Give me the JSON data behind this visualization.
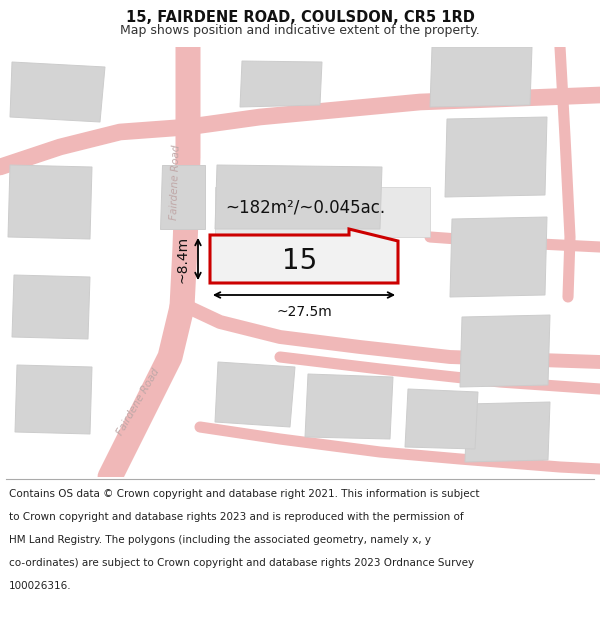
{
  "title": "15, FAIRDENE ROAD, COULSDON, CR5 1RD",
  "subtitle": "Map shows position and indicative extent of the property.",
  "footer_lines": [
    "Contains OS data © Crown copyright and database right 2021. This information is subject",
    "to Crown copyright and database rights 2023 and is reproduced with the permission of",
    "HM Land Registry. The polygons (including the associated geometry, namely x, y",
    "co-ordinates) are subject to Crown copyright and database rights 2023 Ordnance Survey",
    "100026316."
  ],
  "area_label": "~182m²/~0.045ac.",
  "width_label": "~27.5m",
  "height_label": "~8.4m",
  "plot_number": "15",
  "bg_color": "#ffffff",
  "road_color": "#f0b8b8",
  "building_fill": "#d4d4d4",
  "building_edge": "#cccccc",
  "highlight_fill": "#f2f2f2",
  "highlight_edge": "#cc0000",
  "road_label_color": "#c0a8a8",
  "title_fontsize": 10.5,
  "subtitle_fontsize": 9,
  "footer_fontsize": 7.5,
  "annotation_fontsize": 10,
  "area_fontsize": 12,
  "plot_num_fontsize": 20,
  "road_label_fontsize": 7.5
}
